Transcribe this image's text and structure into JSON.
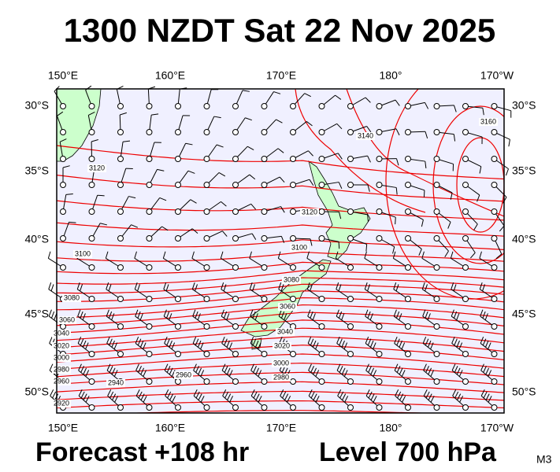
{
  "header": {
    "title": "1300 NZDT Sat 22 Nov 2025"
  },
  "map": {
    "lon_labels": [
      "150°E",
      "160°E",
      "170°E",
      "180°",
      "170°W"
    ],
    "lat_labels": [
      "30°S",
      "35°S",
      "40°S",
      "45°S",
      "50°S"
    ],
    "contour_labels": [
      "3120",
      "3100",
      "3080",
      "3060",
      "3040",
      "3020",
      "3000",
      "2980",
      "2960",
      "2940",
      "2920",
      "3140",
      "3160",
      "3120",
      "3100",
      "3080",
      "3060",
      "3040",
      "3020",
      "3000",
      "2980",
      "2960"
    ]
  },
  "footer": {
    "forecast": "Forecast +108 hr",
    "level": "Level 700 hPa",
    "model": "M3"
  }
}
